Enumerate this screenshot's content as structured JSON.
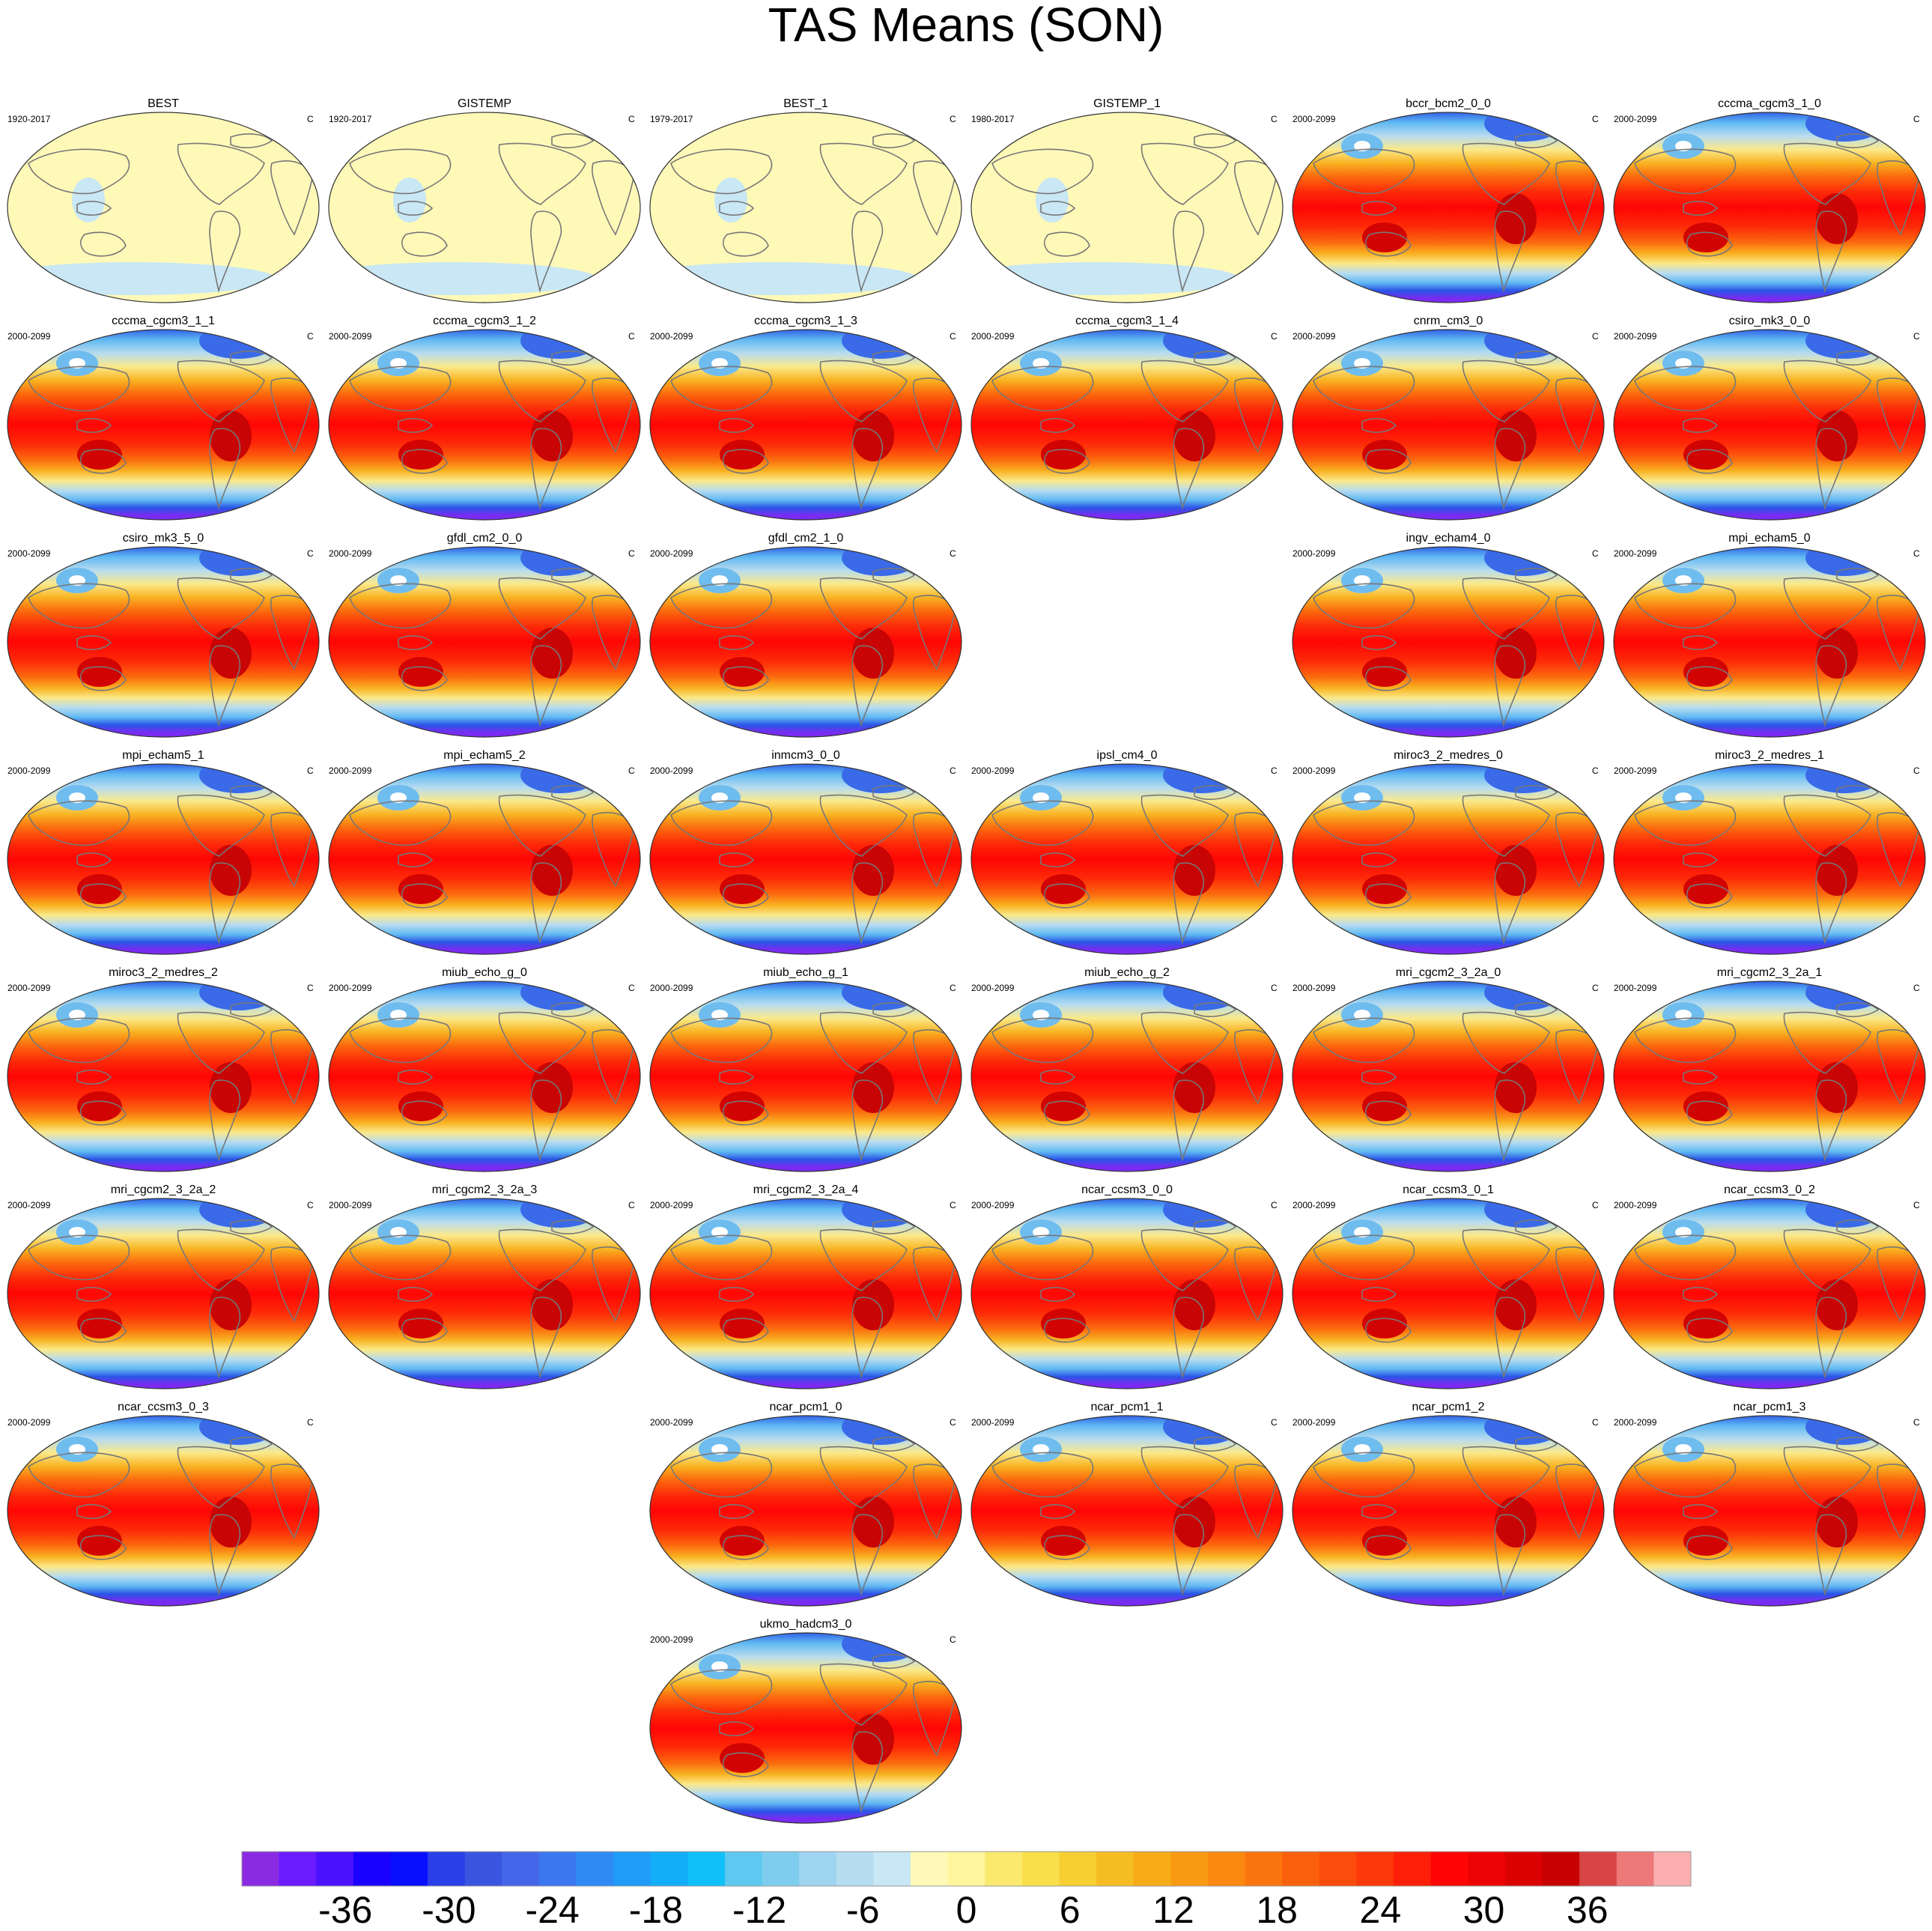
{
  "chart_data": {
    "type": "map-panel",
    "title": "TAS Means (SON)",
    "units": "C",
    "projection": "Robinson-like, Pacific-centered",
    "colorbar": {
      "labels": [
        "-36",
        "-30",
        "-24",
        "-18",
        "-12",
        "-6",
        "0",
        "6",
        "12",
        "18",
        "24",
        "30",
        "36"
      ],
      "levels_min": -42,
      "levels_max": 42,
      "step": 2,
      "colors": [
        "#8a2be2",
        "#6a1bff",
        "#4a12ff",
        "#1a00ff",
        "#0a10ff",
        "#2a3fe8",
        "#3a55e0",
        "#4466e8",
        "#3b78f0",
        "#2e8bf5",
        "#1f9cf8",
        "#12aef8",
        "#10c0f8",
        "#5ec8f0",
        "#7fcdee",
        "#9fd4f0",
        "#b5dcef",
        "#c9e7f4",
        "#fff9b8",
        "#fff59c",
        "#fbe96e",
        "#f8df4c",
        "#f7cf33",
        "#f6bd22",
        "#f7ac17",
        "#f99b12",
        "#fb880f",
        "#fb740e",
        "#fb600d",
        "#fc4c0c",
        "#fd380a",
        "#fe1f08",
        "#ff0505",
        "#ed0303",
        "#da0202",
        "#c70101",
        "#d94444",
        "#ec7878",
        "#fbafaf"
      ]
    },
    "panels": [
      {
        "name": "BEST",
        "period": "1920-2017",
        "units": "C",
        "kind": "obs"
      },
      {
        "name": "GISTEMP",
        "period": "1920-2017",
        "units": "C",
        "kind": "obs"
      },
      {
        "name": "BEST_1",
        "period": "1979-2017",
        "units": "C",
        "kind": "obs"
      },
      {
        "name": "GISTEMP_1",
        "period": "1980-2017",
        "units": "C",
        "kind": "obs"
      },
      {
        "name": "bccr_bcm2_0_0",
        "period": "2000-2099",
        "units": "C",
        "kind": "model"
      },
      {
        "name": "cccma_cgcm3_1_0",
        "period": "2000-2099",
        "units": "C",
        "kind": "model"
      },
      {
        "name": "cccma_cgcm3_1_1",
        "period": "2000-2099",
        "units": "C",
        "kind": "model"
      },
      {
        "name": "cccma_cgcm3_1_2",
        "period": "2000-2099",
        "units": "C",
        "kind": "model"
      },
      {
        "name": "cccma_cgcm3_1_3",
        "period": "2000-2099",
        "units": "C",
        "kind": "model"
      },
      {
        "name": "cccma_cgcm3_1_4",
        "period": "2000-2099",
        "units": "C",
        "kind": "model"
      },
      {
        "name": "cnrm_cm3_0",
        "period": "2000-2099",
        "units": "C",
        "kind": "model"
      },
      {
        "name": "csiro_mk3_0_0",
        "period": "2000-2099",
        "units": "C",
        "kind": "model"
      },
      {
        "name": "csiro_mk3_5_0",
        "period": "2000-2099",
        "units": "C",
        "kind": "model"
      },
      {
        "name": "gfdl_cm2_0_0",
        "period": "2000-2099",
        "units": "C",
        "kind": "model"
      },
      {
        "name": "gfdl_cm2_1_0",
        "period": "2000-2099",
        "units": "C",
        "kind": "model"
      },
      {
        "name": "ingv_echam4_0",
        "period": "2000-2099",
        "units": "C",
        "kind": "model"
      },
      {
        "name": "mpi_echam5_0",
        "period": "2000-2099",
        "units": "C",
        "kind": "model"
      },
      {
        "name": "mpi_echam5_1",
        "period": "2000-2099",
        "units": "C",
        "kind": "model"
      },
      {
        "name": "mpi_echam5_2",
        "period": "2000-2099",
        "units": "C",
        "kind": "model"
      },
      {
        "name": "inmcm3_0_0",
        "period": "2000-2099",
        "units": "C",
        "kind": "model"
      },
      {
        "name": "ipsl_cm4_0",
        "period": "2000-2099",
        "units": "C",
        "kind": "model"
      },
      {
        "name": "miroc3_2_medres_0",
        "period": "2000-2099",
        "units": "C",
        "kind": "model"
      },
      {
        "name": "miroc3_2_medres_1",
        "period": "2000-2099",
        "units": "C",
        "kind": "model"
      },
      {
        "name": "miroc3_2_medres_2",
        "period": "2000-2099",
        "units": "C",
        "kind": "model"
      },
      {
        "name": "miub_echo_g_0",
        "period": "2000-2099",
        "units": "C",
        "kind": "model"
      },
      {
        "name": "miub_echo_g_1",
        "period": "2000-2099",
        "units": "C",
        "kind": "model"
      },
      {
        "name": "miub_echo_g_2",
        "period": "2000-2099",
        "units": "C",
        "kind": "model"
      },
      {
        "name": "mri_cgcm2_3_2a_0",
        "period": "2000-2099",
        "units": "C",
        "kind": "model"
      },
      {
        "name": "mri_cgcm2_3_2a_1",
        "period": "2000-2099",
        "units": "C",
        "kind": "model"
      },
      {
        "name": "mri_cgcm2_3_2a_2",
        "period": "2000-2099",
        "units": "C",
        "kind": "model"
      },
      {
        "name": "mri_cgcm2_3_2a_3",
        "period": "2000-2099",
        "units": "C",
        "kind": "model"
      },
      {
        "name": "mri_cgcm2_3_2a_4",
        "period": "2000-2099",
        "units": "C",
        "kind": "model"
      },
      {
        "name": "ncar_ccsm3_0_0",
        "period": "2000-2099",
        "units": "C",
        "kind": "model"
      },
      {
        "name": "ncar_ccsm3_0_1",
        "period": "2000-2099",
        "units": "C",
        "kind": "model"
      },
      {
        "name": "ncar_ccsm3_0_2",
        "period": "2000-2099",
        "units": "C",
        "kind": "model"
      },
      {
        "name": "ncar_ccsm3_0_3",
        "period": "2000-2099",
        "units": "C",
        "kind": "model"
      },
      {
        "name": "ncar_pcm1_0",
        "period": "2000-2099",
        "units": "C",
        "kind": "model"
      },
      {
        "name": "ncar_pcm1_1",
        "period": "2000-2099",
        "units": "C",
        "kind": "model"
      },
      {
        "name": "ncar_pcm1_2",
        "period": "2000-2099",
        "units": "C",
        "kind": "model"
      },
      {
        "name": "ncar_pcm1_3",
        "period": "2000-2099",
        "units": "C",
        "kind": "model"
      },
      {
        "name": "ukmo_hadcm3_0",
        "period": "2000-2099",
        "units": "C",
        "kind": "model"
      }
    ]
  }
}
